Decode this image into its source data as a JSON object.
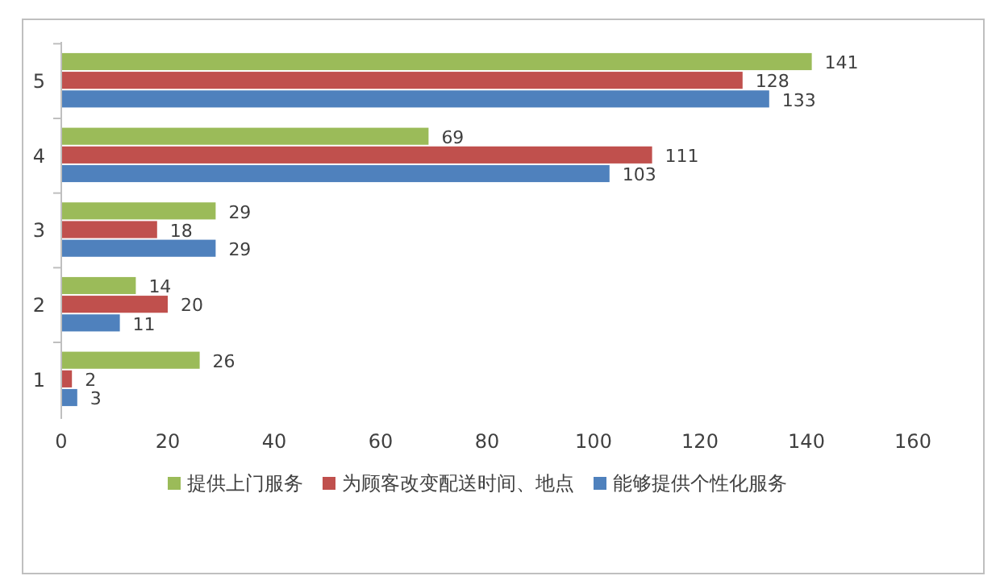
{
  "chart_data": {
    "type": "bar",
    "orientation": "horizontal",
    "categories": [
      "5",
      "4",
      "3",
      "2",
      "1"
    ],
    "series": [
      {
        "name": "提供上门服务",
        "color": "#9bbb59",
        "values": [
          141,
          69,
          29,
          14,
          26
        ]
      },
      {
        "name": "为顾客改变配送时间、地点",
        "color": "#c0504d",
        "values": [
          128,
          111,
          18,
          20,
          2
        ]
      },
      {
        "name": "能够提供个性化服务",
        "color": "#4f81bd",
        "values": [
          133,
          103,
          29,
          11,
          3
        ]
      }
    ],
    "xlim": [
      0,
      160
    ],
    "xticks": [
      0,
      20,
      40,
      60,
      80,
      100,
      120,
      140,
      160
    ],
    "data_labels": true,
    "grid": false,
    "legend": "bottom"
  }
}
